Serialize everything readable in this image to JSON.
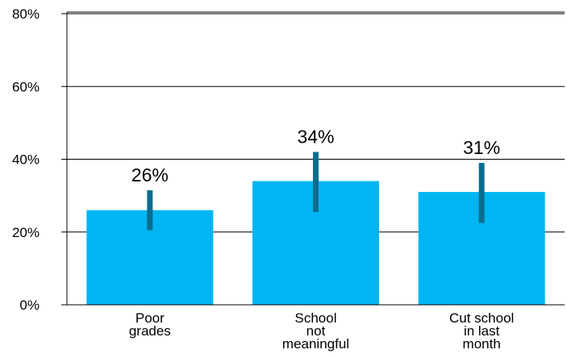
{
  "chart_data": {
    "type": "bar",
    "title": "",
    "xlabel": "",
    "ylabel": "",
    "categories": [
      [
        "Poor",
        "grades"
      ],
      [
        "School",
        "not",
        "meaningful"
      ],
      [
        "Cut school",
        "in last",
        "month"
      ]
    ],
    "values": [
      26,
      34,
      31
    ],
    "data_labels": [
      "26%",
      "34%",
      "31%"
    ],
    "error_low": [
      20.5,
      25.5,
      22.5
    ],
    "error_high": [
      31.5,
      42,
      39
    ],
    "yticks": [
      0,
      20,
      40,
      60,
      80
    ],
    "ytick_labels": [
      "0%",
      "20%",
      "40%",
      "60%",
      "80%"
    ],
    "ylim": [
      0,
      80
    ],
    "grid": true,
    "colors": {
      "bar": "#00b5f1",
      "error_bar": "#0a6d8e",
      "grid": "#000000"
    }
  }
}
